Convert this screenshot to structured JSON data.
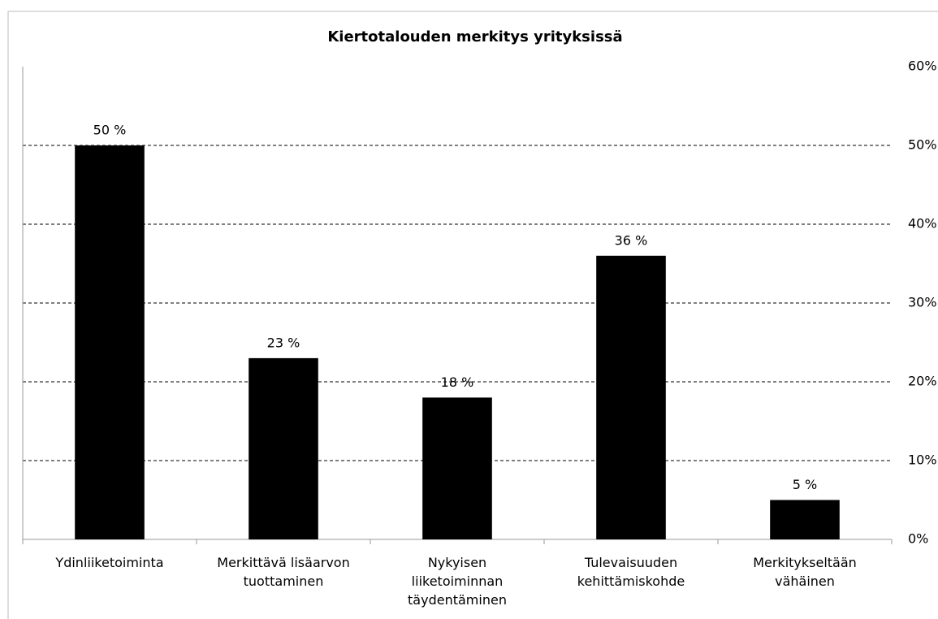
{
  "chart_data": {
    "type": "bar",
    "title": "Kiertotalouden merkitys yrityksissä",
    "categories": [
      "Ydinliiketoiminta",
      "Merkittävä lisäarvon tuottaminen",
      "Nykyisen liiketoiminnan täydentäminen",
      "Tulevaisuuden kehittämiskohde",
      "Merkitykseltään vähäinen"
    ],
    "values": [
      50,
      23,
      18,
      36,
      5
    ],
    "value_labels": [
      "50 %",
      "23 %",
      "18 %",
      "36 %",
      "5 %"
    ],
    "color": "#000000",
    "ylim": [
      0,
      60
    ],
    "yticks": [
      {
        "value": 0,
        "label": "0%"
      },
      {
        "value": 10,
        "label": "10%"
      },
      {
        "value": 20,
        "label": "20%"
      },
      {
        "value": 30,
        "label": "30%"
      },
      {
        "value": 40,
        "label": "40%"
      },
      {
        "value": 50,
        "label": "50%"
      },
      {
        "value": 60,
        "label": "60%"
      }
    ],
    "grid": true
  }
}
